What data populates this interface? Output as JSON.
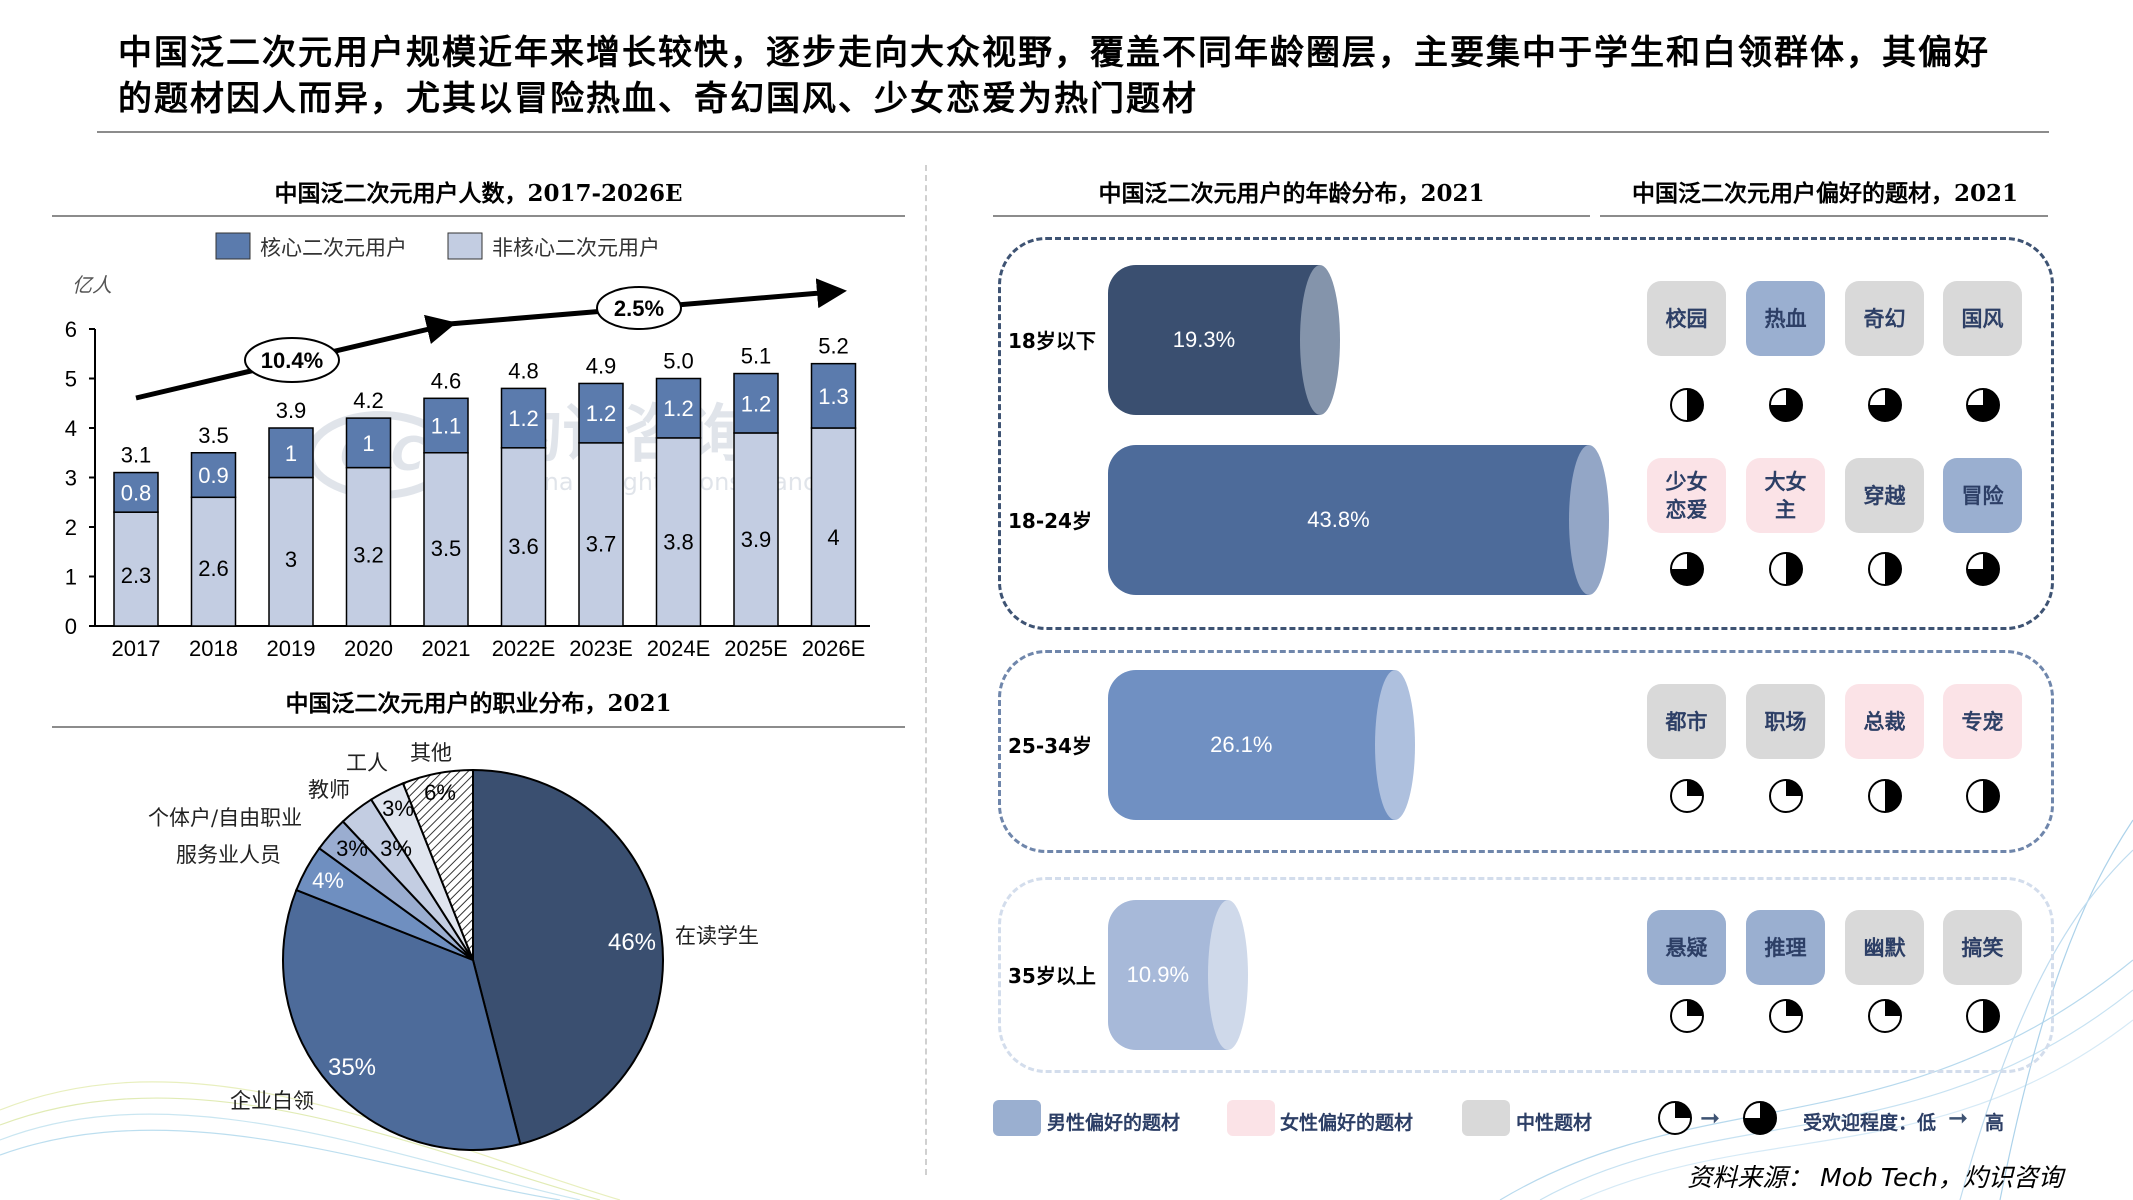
{
  "headline": "中国泛二次元用户规模近年来增长较快，逐步走向大众视野，覆盖不同年龄圈层，主要集中于学生和白领群体，其偏好的题材因人而异，尤其以冒险热血、奇幻国风、少女恋爱为热门题材",
  "watermark": {
    "logo": "CIC",
    "name": "灼识咨询",
    "en": "China Insights Consultancy"
  },
  "chart_data": [
    {
      "type": "bar",
      "stacked": true,
      "title": "中国泛二次元用户人数，2017-2026E",
      "ylabel": "亿人",
      "ylim": [
        0,
        6
      ],
      "yticks": [
        "0",
        "1",
        "2",
        "3",
        "4",
        "5",
        "6"
      ],
      "categories": [
        "2017",
        "2018",
        "2019",
        "2020",
        "2021",
        "2022E",
        "2023E",
        "2024E",
        "2025E",
        "2026E"
      ],
      "series": [
        {
          "name": "非核心二次元用户",
          "color": "#c3cde2",
          "values": [
            2.3,
            2.6,
            3.0,
            3.2,
            3.5,
            3.6,
            3.7,
            3.8,
            3.9,
            4.0
          ]
        },
        {
          "name": "核心二次元用户",
          "color": "#5b7bad",
          "values": [
            0.8,
            0.9,
            1.0,
            1.0,
            1.1,
            1.2,
            1.2,
            1.2,
            1.2,
            1.3
          ]
        }
      ],
      "totals": [
        "3.1",
        "3.5",
        "3.9",
        "4.2",
        "4.6",
        "4.8",
        "4.9",
        "5.0",
        "5.1",
        "5.2"
      ],
      "annotations": [
        {
          "label": "10.4%",
          "period": "2017-2021"
        },
        {
          "label": "2.5%",
          "period": "2021-2026E"
        }
      ],
      "legend_position": "top"
    },
    {
      "type": "pie",
      "title": "中国泛二次元用户的职业分布，2021",
      "slices": [
        {
          "label": "在读学生",
          "value": 46,
          "text": "46%",
          "color": "#3a4f70"
        },
        {
          "label": "企业白领",
          "value": 35,
          "text": "35%",
          "color": "#4d6b9a"
        },
        {
          "label": "服务业人员",
          "value": 4,
          "text": "4%",
          "color": "#6f8fc0"
        },
        {
          "label": "个体户/自由职业",
          "value": 3,
          "text": "3%",
          "color": "#9aadd0"
        },
        {
          "label": "教师",
          "value": 3,
          "text": "3%",
          "color": "#c3cde2"
        },
        {
          "label": "工人",
          "value": 3,
          "text": "3%",
          "color": "#e0e5ef"
        },
        {
          "label": "其他",
          "value": 6,
          "text": "6%",
          "color": "hatch"
        }
      ]
    },
    {
      "type": "bar",
      "orientation": "horizontal",
      "title": "中国泛二次元用户的年龄分布，2021",
      "categories": [
        "18岁以下",
        "18-24岁",
        "25-34岁",
        "35岁以上"
      ],
      "values": [
        19.3,
        43.8,
        26.1,
        10.9
      ],
      "labels": [
        "19.3%",
        "43.8%",
        "26.1%",
        "10.9%"
      ],
      "colors": [
        "#3a4f70",
        "#4d6b9a",
        "#7090c2",
        "#a7b9d9"
      ]
    }
  ],
  "genres": {
    "title": "中国泛二次元用户偏好的题材，2021",
    "rows": [
      [
        {
          "label": "校园",
          "type": "neutral",
          "level": 2
        },
        {
          "label": "热血",
          "type": "male",
          "level": 3
        },
        {
          "label": "奇幻",
          "type": "neutral",
          "level": 3
        },
        {
          "label": "国风",
          "type": "neutral",
          "level": 3
        }
      ],
      [
        {
          "label": "少女\n恋爱",
          "type": "female",
          "level": 3
        },
        {
          "label": "大女\n主",
          "type": "female",
          "level": 2
        },
        {
          "label": "穿越",
          "type": "neutral",
          "level": 2
        },
        {
          "label": "冒险",
          "type": "male",
          "level": 3
        }
      ],
      [
        {
          "label": "都市",
          "type": "neutral",
          "level": 1
        },
        {
          "label": "职场",
          "type": "neutral",
          "level": 1
        },
        {
          "label": "总裁",
          "type": "female",
          "level": 2
        },
        {
          "label": "专宠",
          "type": "female",
          "level": 2
        }
      ],
      [
        {
          "label": "悬疑",
          "type": "male",
          "level": 1
        },
        {
          "label": "推理",
          "type": "male",
          "level": 1
        },
        {
          "label": "幽默",
          "type": "neutral",
          "level": 1
        },
        {
          "label": "搞笑",
          "type": "neutral",
          "level": 2
        }
      ]
    ],
    "type_colors": {
      "male": "#9aafd0",
      "female": "#fbe3e7",
      "neutral": "#d9d9d9"
    }
  },
  "legend": {
    "male": "男性偏好的题材",
    "female": "女性偏好的题材",
    "neutral": "中性题材",
    "popularity": "受欢迎程度：低",
    "high": "高"
  },
  "source": "资料来源： Mob Tech，灼识咨询"
}
